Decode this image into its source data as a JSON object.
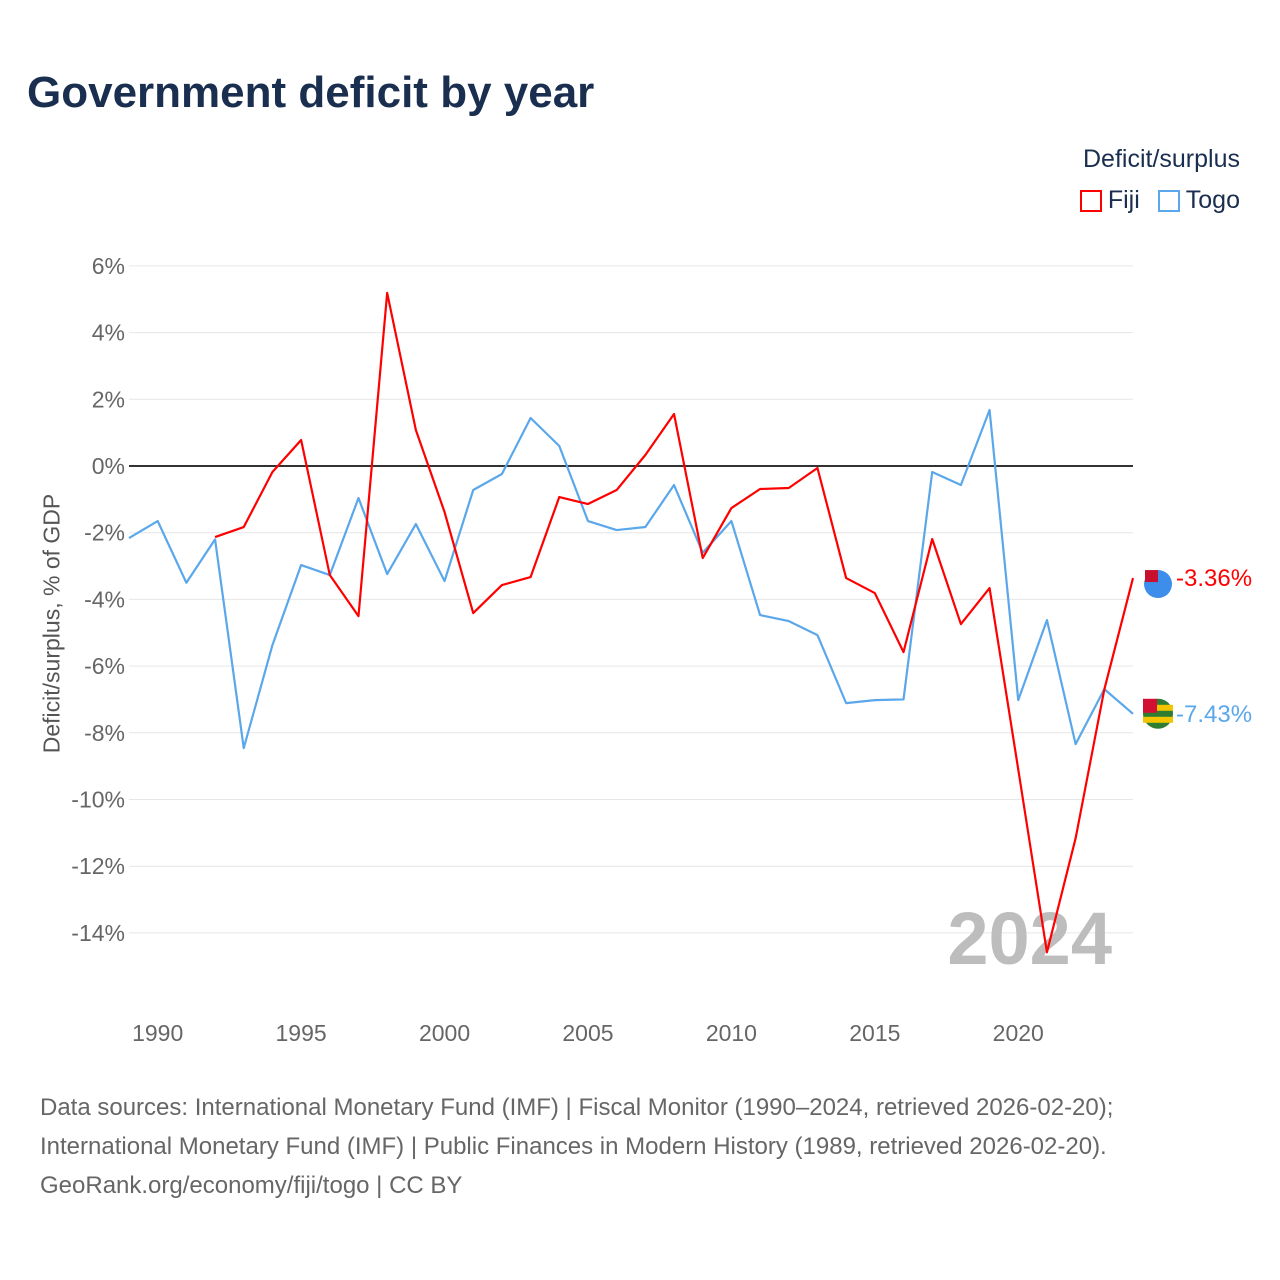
{
  "title": "Government deficit by year",
  "legend": {
    "title": "Deficit/surplus",
    "items": [
      {
        "label": "Fiji",
        "color": "#ff0000"
      },
      {
        "label": "Togo",
        "color": "#5aa7eb"
      }
    ]
  },
  "footer": {
    "line1": "Data sources: International Monetary Fund (IMF) | Fiscal Monitor (1990–2024, retrieved 2026-02-20);",
    "line2": "International Monetary Fund (IMF) | Public Finances in Modern History (1989, retrieved 2026-02-20).",
    "line3": "GeoRank.org/economy/fiji/togo | CC BY"
  },
  "chart_data": {
    "type": "line",
    "title": "Government deficit by year",
    "ylabel": "Deficit/surplus, % of GDP",
    "xlabel": "",
    "xlim": [
      1989,
      2024
    ],
    "ylim": [
      -16,
      6.5
    ],
    "yticks": [
      6,
      4,
      2,
      0,
      -2,
      -4,
      -6,
      -8,
      -10,
      -12,
      -14
    ],
    "ytick_labels": [
      "6%",
      "4%",
      "2%",
      "0%",
      "-2%",
      "-4%",
      "-6%",
      "-8%",
      "-10%",
      "-12%",
      "-14%"
    ],
    "xticks": [
      1990,
      1995,
      2000,
      2005,
      2010,
      2015,
      2020
    ],
    "xtick_labels": [
      "1990",
      "1995",
      "2000",
      "2005",
      "2010",
      "2015",
      "2020"
    ],
    "year_watermark": "2024",
    "series": [
      {
        "name": "Fiji",
        "color": "#ff0000",
        "end_label": "-3.36%",
        "x": [
          1992,
          1993,
          1994,
          1995,
          1996,
          1997,
          1998,
          1999,
          2000,
          2001,
          2002,
          2003,
          2004,
          2005,
          2006,
          2007,
          2008,
          2009,
          2010,
          2011,
          2012,
          2013,
          2014,
          2015,
          2016,
          2017,
          2018,
          2019,
          2020,
          2021,
          2022,
          2023,
          2024
        ],
        "values": [
          -2.13,
          -1.83,
          -0.18,
          0.78,
          -3.27,
          -4.5,
          5.19,
          1.08,
          -1.38,
          -4.41,
          -3.57,
          -3.33,
          -0.93,
          -1.14,
          -0.72,
          0.33,
          1.56,
          -2.76,
          -1.26,
          -0.69,
          -0.66,
          -0.06,
          -3.36,
          -3.81,
          -5.58,
          -2.19,
          -4.74,
          -3.66,
          -9.1,
          -14.58,
          -11.16,
          -6.7,
          -3.36
        ]
      },
      {
        "name": "Togo",
        "color": "#5aa7eb",
        "end_label": "-7.43%",
        "x": [
          1989,
          1990,
          1991,
          1992,
          1993,
          1994,
          1995,
          1996,
          1997,
          1998,
          1999,
          2000,
          2001,
          2002,
          2003,
          2004,
          2005,
          2006,
          2007,
          2008,
          2009,
          2010,
          2011,
          2012,
          2013,
          2014,
          2015,
          2016,
          2017,
          2018,
          2019,
          2020,
          2021,
          2022,
          2023,
          2024
        ],
        "values": [
          -2.16,
          -1.65,
          -3.5,
          -2.2,
          -8.46,
          -5.37,
          -2.97,
          -3.27,
          -0.96,
          -3.24,
          -1.74,
          -3.45,
          -0.72,
          -0.24,
          1.44,
          0.6,
          -1.65,
          -1.92,
          -1.83,
          -0.57,
          -2.6,
          -1.65,
          -4.47,
          -4.65,
          -5.07,
          -7.11,
          -7.02,
          -7.0,
          -0.18,
          -0.57,
          1.68,
          -7.02,
          -4.62,
          -8.34,
          -6.69,
          -7.43
        ]
      }
    ]
  }
}
